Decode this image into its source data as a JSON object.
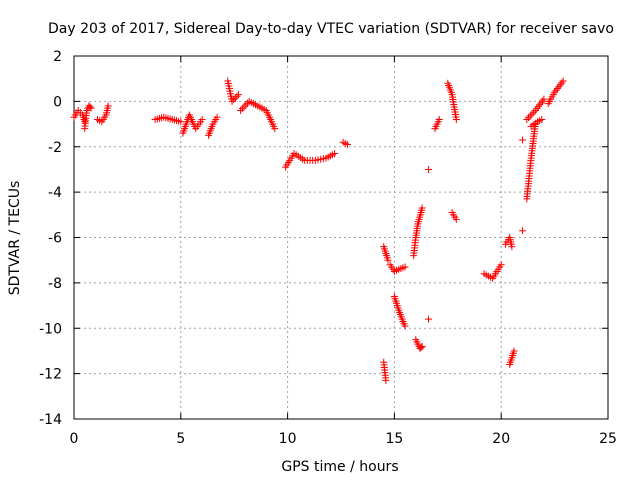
{
  "chart_data": {
    "type": "scatter",
    "title": "Day 203 of 2017, Sidereal Day-to-day VTEC variation (SDTVAR) for receiver savo",
    "xlabel": "GPS time / hours",
    "ylabel": "SDTVAR / TECUs",
    "xlim": [
      0,
      25
    ],
    "ylim": [
      -14,
      2
    ],
    "xticks": [
      0,
      5,
      10,
      15,
      20,
      25
    ],
    "yticks": [
      2,
      0,
      -2,
      -4,
      -6,
      -8,
      -10,
      -12,
      -14
    ],
    "grid": true,
    "marker": "+",
    "color": "#ff0000",
    "segments": [
      {
        "x": [
          0.0,
          0.2,
          0.4,
          0.5
        ],
        "y": [
          -0.7,
          -0.4,
          -0.6,
          -0.9
        ]
      },
      {
        "x": [
          0.5,
          0.6,
          0.7,
          0.8
        ],
        "y": [
          -1.2,
          -0.4,
          -0.2,
          -0.3
        ]
      },
      {
        "x": [
          1.1,
          1.3,
          1.5,
          1.6
        ],
        "y": [
          -0.8,
          -0.9,
          -0.6,
          -0.2
        ]
      },
      {
        "x": [
          3.8,
          4.2,
          4.6,
          5.0
        ],
        "y": [
          -0.8,
          -0.7,
          -0.8,
          -0.9
        ]
      },
      {
        "x": [
          5.1,
          5.4,
          5.7,
          6.0
        ],
        "y": [
          -1.4,
          -0.6,
          -1.2,
          -0.8
        ]
      },
      {
        "x": [
          6.3,
          6.5,
          6.7
        ],
        "y": [
          -1.5,
          -1.0,
          -0.7
        ]
      },
      {
        "x": [
          7.2,
          7.4,
          7.7
        ],
        "y": [
          0.9,
          0.0,
          0.3
        ]
      },
      {
        "x": [
          7.8,
          8.2,
          8.6,
          9.0,
          9.4
        ],
        "y": [
          -0.4,
          0.0,
          -0.2,
          -0.4,
          -1.2
        ]
      },
      {
        "x": [
          9.9,
          10.3,
          10.8,
          11.3,
          11.8,
          12.2
        ],
        "y": [
          -2.9,
          -2.3,
          -2.6,
          -2.6,
          -2.5,
          -2.3
        ]
      },
      {
        "x": [
          12.6,
          12.8
        ],
        "y": [
          -1.8,
          -1.9
        ]
      },
      {
        "x": [
          14.5,
          14.6
        ],
        "y": [
          -11.5,
          -12.3
        ]
      },
      {
        "x": [
          14.5,
          14.7
        ],
        "y": [
          -6.4,
          -7.0
        ]
      },
      {
        "x": [
          14.8,
          15.0,
          15.2,
          15.5
        ],
        "y": [
          -7.2,
          -7.5,
          -7.4,
          -7.3
        ]
      },
      {
        "x": [
          15.0,
          15.2,
          15.4,
          15.5
        ],
        "y": [
          -8.6,
          -9.2,
          -9.7,
          -9.9
        ]
      },
      {
        "x": [
          15.9,
          16.0,
          16.1,
          16.3
        ],
        "y": [
          -6.8,
          -6.0,
          -5.4,
          -4.7
        ]
      },
      {
        "x": [
          16.0,
          16.1,
          16.2,
          16.3
        ],
        "y": [
          -10.5,
          -10.7,
          -10.9,
          -10.8
        ]
      },
      {
        "x": [
          16.6
        ],
        "y": [
          -3.0
        ]
      },
      {
        "x": [
          16.6
        ],
        "y": [
          -9.6
        ]
      },
      {
        "x": [
          16.9,
          17.1
        ],
        "y": [
          -1.2,
          -0.8
        ]
      },
      {
        "x": [
          17.5,
          17.7,
          17.9
        ],
        "y": [
          0.8,
          0.3,
          -0.8
        ]
      },
      {
        "x": [
          17.7,
          17.9
        ],
        "y": [
          -4.9,
          -5.2
        ]
      },
      {
        "x": [
          19.2,
          19.6,
          20.0
        ],
        "y": [
          -7.6,
          -7.8,
          -7.2
        ]
      },
      {
        "x": [
          20.2,
          20.4,
          20.5
        ],
        "y": [
          -6.3,
          -6.0,
          -6.4
        ]
      },
      {
        "x": [
          20.4,
          20.6
        ],
        "y": [
          -11.6,
          -11.0
        ]
      },
      {
        "x": [
          21.0
        ],
        "y": [
          -1.7
        ]
      },
      {
        "x": [
          21.0
        ],
        "y": [
          -5.7
        ]
      },
      {
        "x": [
          21.2,
          21.4,
          21.6
        ],
        "y": [
          -4.3,
          -2.5,
          -1.0
        ]
      },
      {
        "x": [
          21.2,
          21.6,
          22.0
        ],
        "y": [
          -0.8,
          -0.4,
          0.1
        ]
      },
      {
        "x": [
          21.4,
          21.7,
          21.9
        ],
        "y": [
          -1.1,
          -0.9,
          -0.8
        ]
      },
      {
        "x": [
          22.2,
          22.5,
          22.9
        ],
        "y": [
          -0.1,
          0.4,
          0.9
        ]
      }
    ]
  }
}
